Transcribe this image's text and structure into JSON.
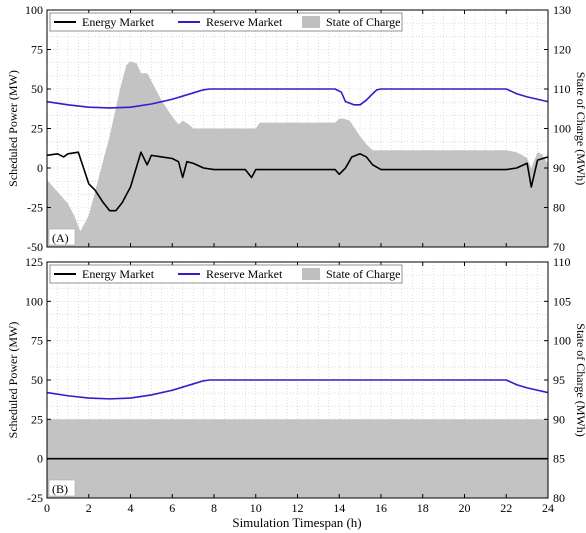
{
  "figure": {
    "xlabel": "Simulation Timespan (h)",
    "legend_labels": [
      "Energy Market",
      "Reserve Market",
      "State of Charge"
    ]
  },
  "colors": {
    "energy": "#000000",
    "reserve": "#2f1fc8",
    "soc": "#c0c0c0",
    "grid": "#c8c8c8",
    "axis": "#000000"
  },
  "chart_data": [
    {
      "type": "line",
      "panel_label": "(A)",
      "xlabel": "Simulation Timespan (h)",
      "ylabel": "Scheduled Power (MW)",
      "ylabel_right": "State of Charge (MWh)",
      "xlim": [
        0,
        24
      ],
      "ylim": [
        -50,
        100
      ],
      "ylim_right": [
        70,
        130
      ],
      "x_ticks": [
        "0",
        "2",
        "4",
        "6",
        "8",
        "10",
        "12",
        "14",
        "16",
        "18",
        "20",
        "22",
        "24"
      ],
      "y_ticks": [
        "-50",
        "-25",
        "0",
        "25",
        "50",
        "75",
        "100"
      ],
      "y_ticks_right": [
        "70",
        "80",
        "90",
        "100",
        "110",
        "120",
        "130"
      ],
      "legend": "top-left",
      "grid": true,
      "series": [
        {
          "name": "Energy Market",
          "axis": "left",
          "x": [
            0,
            0.5,
            0.8,
            1.0,
            1.5,
            2.0,
            2.3,
            2.7,
            3.0,
            3.3,
            3.6,
            4.0,
            4.5,
            4.8,
            5.0,
            5.5,
            6.0,
            6.3,
            6.5,
            6.7,
            7.0,
            7.5,
            8.0,
            8.5,
            9.0,
            9.5,
            9.8,
            10.0,
            10.5,
            11.0,
            12.0,
            13.0,
            13.8,
            14.0,
            14.3,
            14.6,
            15.0,
            15.3,
            15.6,
            16.0,
            17.0,
            18.0,
            19.0,
            20.0,
            21.0,
            22.0,
            22.5,
            23.0,
            23.2,
            23.5,
            24.0
          ],
          "values": [
            8,
            9,
            7,
            9,
            10,
            -10,
            -14,
            -22,
            -27,
            -27,
            -22,
            -12,
            10,
            2,
            8,
            7,
            6,
            4,
            -6,
            4,
            3,
            0,
            -1,
            -1,
            -1,
            -1,
            -6,
            -1,
            -1,
            -1,
            -1,
            -1,
            -1,
            -4,
            0,
            7,
            9,
            7,
            2,
            -1,
            -1,
            -1,
            -1,
            -1,
            -1,
            -1,
            0,
            3,
            -12,
            5,
            7
          ]
        },
        {
          "name": "Reserve Market",
          "axis": "left",
          "x": [
            0,
            1,
            2,
            3,
            4,
            5,
            6,
            7,
            7.5,
            7.8,
            8,
            10,
            12,
            13,
            13.8,
            14.1,
            14.3,
            14.7,
            15.0,
            15.3,
            15.6,
            15.8,
            16,
            18,
            20,
            22,
            22.5,
            23,
            24
          ],
          "values": [
            42,
            40,
            38.5,
            38,
            38.5,
            40.5,
            43.5,
            47.5,
            49.5,
            50,
            50,
            50,
            50,
            50,
            50,
            48,
            42,
            40,
            40,
            43,
            47,
            49.5,
            50,
            50,
            50,
            50,
            47,
            45,
            42
          ]
        },
        {
          "name": "State of Charge",
          "axis": "right",
          "x": [
            0,
            0.5,
            1.0,
            1.3,
            1.6,
            2.0,
            2.5,
            3.0,
            3.5,
            3.8,
            4.0,
            4.3,
            4.5,
            4.8,
            5.0,
            5.5,
            6.0,
            6.3,
            6.5,
            6.8,
            7.0,
            8.0,
            9.0,
            10.0,
            10.2,
            11.0,
            12.0,
            13.0,
            13.8,
            14.0,
            14.2,
            14.5,
            15.0,
            15.3,
            15.6,
            16.0,
            18.0,
            20.0,
            22.0,
            22.5,
            23.0,
            23.2,
            23.5,
            23.7,
            24.0
          ],
          "values": [
            87,
            84,
            81,
            78,
            74,
            78,
            88,
            98,
            110,
            116,
            117,
            116.5,
            114,
            114,
            112,
            107,
            103,
            101,
            102,
            101,
            100,
            100,
            100,
            100,
            101.5,
            101.5,
            101.5,
            101.5,
            101.5,
            102.5,
            102.5,
            102,
            98,
            96,
            94.5,
            94.5,
            94.5,
            94.5,
            94.5,
            94,
            92.5,
            90,
            94,
            93.5,
            91
          ]
        }
      ]
    },
    {
      "type": "line",
      "panel_label": "(B)",
      "xlabel": "Simulation Timespan (h)",
      "ylabel": "Scheduled Power (MW)",
      "ylabel_right": "State of Charge (MWh)",
      "xlim": [
        0,
        24
      ],
      "ylim": [
        -25,
        125
      ],
      "ylim_right": [
        80,
        110
      ],
      "x_ticks": [
        "0",
        "2",
        "4",
        "6",
        "8",
        "10",
        "12",
        "14",
        "16",
        "18",
        "20",
        "22",
        "24"
      ],
      "y_ticks": [
        "-25",
        "0",
        "25",
        "50",
        "75",
        "100",
        "125"
      ],
      "y_ticks_right": [
        "80",
        "85",
        "90",
        "95",
        "100",
        "105",
        "110"
      ],
      "legend": "top-left",
      "grid": true,
      "series": [
        {
          "name": "Energy Market",
          "axis": "left",
          "x": [
            0,
            24
          ],
          "values": [
            0,
            0
          ]
        },
        {
          "name": "Reserve Market",
          "axis": "left",
          "x": [
            0,
            1,
            2,
            3,
            4,
            5,
            6,
            7,
            7.5,
            7.8,
            8,
            10,
            12,
            14,
            16,
            18,
            20,
            22,
            22.5,
            23,
            24
          ],
          "values": [
            42,
            40,
            38.5,
            38,
            38.5,
            40.5,
            43.5,
            47.5,
            49.5,
            50,
            50,
            50,
            50,
            50,
            50,
            50,
            50,
            50,
            47,
            45,
            42
          ]
        },
        {
          "name": "State of Charge",
          "axis": "right",
          "x": [
            0,
            24
          ],
          "values": [
            90,
            90
          ]
        }
      ]
    }
  ]
}
